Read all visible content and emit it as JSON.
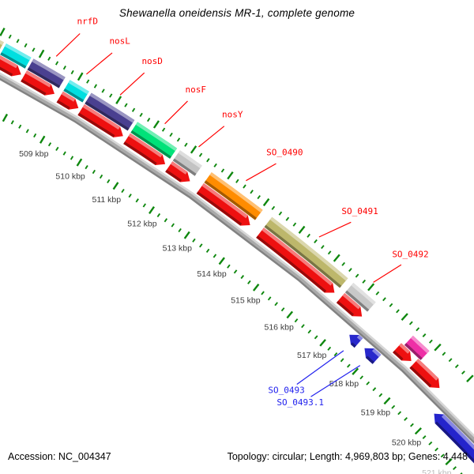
{
  "title": "Shewanella oneidensis MR-1, complete genome",
  "footer": {
    "left": "Accession: NC_004347",
    "right": "Topology: circular; Length: 4,969,803 bp; Genes: 4,448"
  },
  "chart_data": {
    "type": "genome-map",
    "unit": "kbp",
    "visible_start_kbp": 506.3,
    "visible_end_kbp": 521.9,
    "major_tick_kbp": 1.0,
    "minor_tick_kbp": 0.2,
    "tick_color": "#0e870e",
    "tick_label_color": "#3c3c3c",
    "muted_tick_label_color": "#bcbcbc",
    "backbone_colors": [
      "#d6d6d6",
      "#a9a9a9",
      "#828282"
    ],
    "tick_labels": [
      {
        "kbp": 509,
        "text": "509 kbp"
      },
      {
        "kbp": 510,
        "text": "510 kbp"
      },
      {
        "kbp": 511,
        "text": "511 kbp"
      },
      {
        "kbp": 512,
        "text": "512 kbp"
      },
      {
        "kbp": 513,
        "text": "513 kbp"
      },
      {
        "kbp": 514,
        "text": "514 kbp"
      },
      {
        "kbp": 515,
        "text": "515 kbp"
      },
      {
        "kbp": 516,
        "text": "516 kbp"
      },
      {
        "kbp": 517,
        "text": "517 kbp"
      },
      {
        "kbp": 518,
        "text": "518 kbp"
      },
      {
        "kbp": 519,
        "text": "519 kbp"
      },
      {
        "kbp": 520,
        "text": "520 kbp"
      },
      {
        "kbp": 521,
        "text": "521 kbp",
        "muted": true
      }
    ],
    "genes": [
      {
        "name": null,
        "ring": "gene",
        "strand": "+",
        "start": 506.4,
        "end": 507.14,
        "color": "#bdb76b"
      },
      {
        "name": null,
        "ring": "gene",
        "strand": "+",
        "start": 507.2,
        "end": 507.84,
        "color": "#00dfe0"
      },
      {
        "name": "nrfD",
        "ring": "gene",
        "strand": "+",
        "start": 507.9,
        "end": 508.72,
        "color": "#4a4090"
      },
      {
        "name": "nosL",
        "ring": "gene",
        "strand": "+",
        "start": 508.84,
        "end": 509.34,
        "color": "#00dfe0"
      },
      {
        "name": "nosD",
        "ring": "gene",
        "strand": "+",
        "start": 509.4,
        "end": 510.54,
        "color": "#4a4090"
      },
      {
        "name": "nosF",
        "ring": "gene",
        "strand": "+",
        "start": 510.62,
        "end": 511.68,
        "color": "#00e279"
      },
      {
        "name": "nosY",
        "ring": "gene",
        "strand": "+",
        "start": 511.76,
        "end": 512.36,
        "color": "#c3c3c3"
      },
      {
        "name": "SO_0490",
        "ring": "gene",
        "strand": "+",
        "start": 512.62,
        "end": 514.04,
        "color": "#ff8c00"
      },
      {
        "name": "SO_0491",
        "ring": "gene",
        "strand": "+",
        "start": 514.3,
        "end": 516.48,
        "color": "#bdb76b"
      },
      {
        "name": "SO_0492",
        "ring": "gene",
        "strand": "+",
        "start": 516.64,
        "end": 517.3,
        "color": "#c8c8c8"
      },
      {
        "name": null,
        "ring": "gene",
        "strand": "+",
        "start": 518.42,
        "end": 518.92,
        "color": "#ee2fa6"
      },
      {
        "name": null,
        "ring": "cds",
        "strand": "+",
        "start": 506.4,
        "end": 507.12,
        "color": "#ee1010"
      },
      {
        "name": null,
        "ring": "cds",
        "strand": "+",
        "start": 507.2,
        "end": 507.83,
        "color": "#ee1010"
      },
      {
        "name": null,
        "ring": "cds",
        "strand": "+",
        "start": 507.9,
        "end": 508.7,
        "color": "#ee1010"
      },
      {
        "name": null,
        "ring": "cds",
        "strand": "+",
        "start": 508.84,
        "end": 509.33,
        "color": "#ee1010"
      },
      {
        "name": null,
        "ring": "cds",
        "strand": "+",
        "start": 509.4,
        "end": 510.52,
        "color": "#ee1010"
      },
      {
        "name": null,
        "ring": "cds",
        "strand": "+",
        "start": 510.62,
        "end": 511.66,
        "color": "#ee1010"
      },
      {
        "name": null,
        "ring": "cds",
        "strand": "+",
        "start": 511.76,
        "end": 512.34,
        "color": "#ee1010"
      },
      {
        "name": null,
        "ring": "cds",
        "strand": "+",
        "start": 512.62,
        "end": 514.02,
        "color": "#ee1010"
      },
      {
        "name": null,
        "ring": "cds",
        "strand": "+",
        "start": 514.3,
        "end": 516.46,
        "color": "#ee1010"
      },
      {
        "name": null,
        "ring": "cds",
        "strand": "+",
        "start": 516.64,
        "end": 517.28,
        "color": "#ee1010"
      },
      {
        "name": null,
        "ring": "cds",
        "strand": "+",
        "start": 518.34,
        "end": 518.78,
        "color": "#ee1010"
      },
      {
        "name": null,
        "ring": "cds",
        "strand": "+",
        "start": 518.86,
        "end": 519.66,
        "color": "#ee1010"
      },
      {
        "name": "SO_0493",
        "ring": "reverse",
        "strand": "-",
        "start": 517.34,
        "end": 517.62,
        "color": "#2828cc"
      },
      {
        "name": "SO_0493.1",
        "ring": "reverse",
        "strand": "-",
        "start": 517.8,
        "end": 518.18,
        "color": "#2828cc"
      },
      {
        "name": null,
        "ring": "reverse",
        "strand": "-",
        "start": 519.98,
        "end": 521.45,
        "color": "#2424cc"
      }
    ],
    "callouts": [
      {
        "text": "nrfD",
        "color": "#ff0000",
        "side": "outer",
        "tip_kbp": 508.31,
        "label_kbp": 508.55
      },
      {
        "text": "nosL",
        "color": "#ff0000",
        "side": "outer",
        "tip_kbp": 509.09,
        "label_kbp": 509.37
      },
      {
        "text": "nosD",
        "color": "#ff0000",
        "side": "outer",
        "tip_kbp": 509.97,
        "label_kbp": 510.2
      },
      {
        "text": "nosF",
        "color": "#ff0000",
        "side": "outer",
        "tip_kbp": 511.15,
        "label_kbp": 511.33
      },
      {
        "text": "nosY",
        "color": "#ff0000",
        "side": "outer",
        "tip_kbp": 512.06,
        "label_kbp": 512.3
      },
      {
        "text": "SO_0490",
        "color": "#ff0000",
        "side": "outer",
        "tip_kbp": 513.35,
        "label_kbp": 513.7
      },
      {
        "text": "SO_0491",
        "color": "#ff0000",
        "side": "outer",
        "tip_kbp": 515.4,
        "label_kbp": 515.78
      },
      {
        "text": "SO_0492",
        "color": "#ff0000",
        "side": "outer",
        "tip_kbp": 516.97,
        "label_kbp": 517.22
      },
      {
        "text": "SO_0493",
        "color": "#2222ee",
        "side": "inner",
        "tip_kbp": 517.48,
        "label_kbp": 517.13
      },
      {
        "text": "SO_0493.1",
        "color": "#2222ee",
        "side": "inner",
        "tip_kbp": 517.99,
        "label_kbp": 517.57
      }
    ]
  }
}
